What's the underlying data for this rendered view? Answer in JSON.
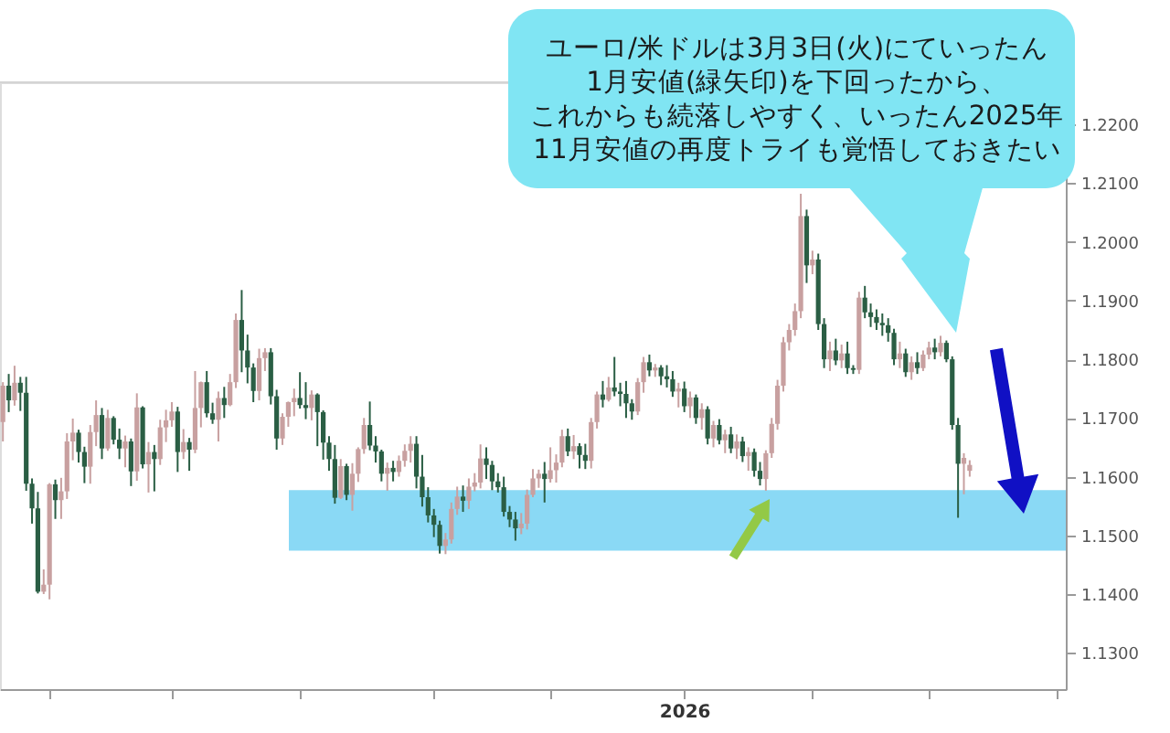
{
  "chart_data": {
    "type": "candlestick",
    "categories": [
      null,
      null,
      null,
      null,
      null,
      null,
      null,
      null,
      null,
      null,
      null,
      null,
      null,
      null,
      null,
      null,
      null,
      null,
      null,
      null,
      null,
      null,
      null,
      null,
      null,
      null,
      null,
      null,
      null,
      null,
      null,
      null,
      null,
      null,
      null,
      null,
      null,
      null,
      null,
      null,
      null,
      null,
      null,
      null,
      null,
      null,
      null,
      null,
      null,
      null,
      null,
      null,
      null,
      null,
      null,
      null,
      null,
      null,
      null,
      null,
      null,
      null,
      null,
      null,
      null,
      null,
      null,
      null,
      null,
      null,
      null,
      null,
      null,
      null,
      null,
      null,
      null,
      null,
      null,
      null,
      null,
      null,
      null,
      null,
      null,
      null,
      null,
      null,
      null,
      null,
      null,
      null,
      null,
      null,
      null,
      null,
      null,
      null,
      null,
      null,
      null,
      null,
      null,
      null,
      null,
      null,
      null,
      null,
      null,
      null,
      null,
      null,
      null,
      null,
      null,
      null,
      null,
      "2026",
      null,
      null,
      null,
      null,
      null,
      null,
      null,
      null,
      null,
      null,
      null,
      null,
      null,
      null,
      null,
      null,
      null,
      null,
      null,
      null,
      null,
      null,
      null,
      null,
      null,
      null,
      null,
      null,
      null,
      null,
      null,
      null,
      null,
      null,
      null,
      null,
      null,
      null,
      null,
      null,
      null,
      null,
      null,
      null,
      null,
      null,
      null,
      null,
      null,
      null,
      null,
      null,
      null,
      null,
      null,
      null,
      null,
      null,
      null,
      null,
      null,
      null,
      null,
      null,
      null
    ],
    "ohlc": [
      [
        1.1693,
        1.1761,
        1.166,
        1.1755
      ],
      [
        1.1755,
        1.1775,
        1.171,
        1.173
      ],
      [
        1.173,
        1.1789,
        1.1721,
        1.176
      ],
      [
        1.176,
        1.177,
        1.1712,
        1.1743
      ],
      [
        1.1743,
        1.177,
        1.1576,
        1.1588
      ],
      [
        1.1588,
        1.1597,
        1.152,
        1.1546
      ],
      [
        1.1546,
        1.1574,
        1.1401,
        1.1404
      ],
      [
        1.1404,
        1.1442,
        1.14,
        1.1416
      ],
      [
        1.1416,
        1.1589,
        1.1391,
        1.1587
      ],
      [
        1.1587,
        1.1595,
        1.1528,
        1.156
      ],
      [
        1.156,
        1.1598,
        1.1528,
        1.1575
      ],
      [
        1.1575,
        1.1674,
        1.1562,
        1.166
      ],
      [
        1.166,
        1.1699,
        1.1628,
        1.1675
      ],
      [
        1.1675,
        1.168,
        1.1624,
        1.1642
      ],
      [
        1.1642,
        1.1651,
        1.1589,
        1.1617
      ],
      [
        1.1617,
        1.1688,
        1.1588,
        1.1676
      ],
      [
        1.1676,
        1.173,
        1.1652,
        1.1705
      ],
      [
        1.1705,
        1.1717,
        1.163,
        1.1648
      ],
      [
        1.1648,
        1.1714,
        1.1644,
        1.17
      ],
      [
        1.17,
        1.1703,
        1.1655,
        1.1663
      ],
      [
        1.1663,
        1.1682,
        1.163,
        1.1648
      ],
      [
        1.1648,
        1.167,
        1.1616,
        1.166
      ],
      [
        1.166,
        1.1665,
        1.1584,
        1.1609
      ],
      [
        1.1609,
        1.1742,
        1.1593,
        1.1718
      ],
      [
        1.1718,
        1.172,
        1.1614,
        1.1621
      ],
      [
        1.1621,
        1.1659,
        1.1573,
        1.1642
      ],
      [
        1.1642,
        1.1654,
        1.1575,
        1.163
      ],
      [
        1.163,
        1.1697,
        1.162,
        1.1684
      ],
      [
        1.1684,
        1.1714,
        1.1659,
        1.1696
      ],
      [
        1.1696,
        1.1727,
        1.1685,
        1.1711
      ],
      [
        1.1711,
        1.1719,
        1.1608,
        1.1642
      ],
      [
        1.1642,
        1.1681,
        1.163,
        1.1659
      ],
      [
        1.1659,
        1.1666,
        1.161,
        1.1646
      ],
      [
        1.1646,
        1.178,
        1.164,
        1.1717
      ],
      [
        1.1717,
        1.1762,
        1.1684,
        1.1761
      ],
      [
        1.1761,
        1.178,
        1.1701,
        1.1708
      ],
      [
        1.1708,
        1.1726,
        1.169,
        1.1697
      ],
      [
        1.1697,
        1.1745,
        1.166,
        1.1734
      ],
      [
        1.1734,
        1.1753,
        1.17,
        1.1722
      ],
      [
        1.1722,
        1.1775,
        1.172,
        1.1761
      ],
      [
        1.1761,
        1.1878,
        1.1751,
        1.1867
      ],
      [
        1.1867,
        1.1918,
        1.1778,
        1.1815
      ],
      [
        1.1815,
        1.1842,
        1.1759,
        1.1786
      ],
      [
        1.1786,
        1.1793,
        1.1727,
        1.1746
      ],
      [
        1.1746,
        1.1818,
        1.173,
        1.1802
      ],
      [
        1.1802,
        1.1819,
        1.178,
        1.1812
      ],
      [
        1.1812,
        1.1819,
        1.1723,
        1.1737
      ],
      [
        1.1737,
        1.1748,
        1.1646,
        1.1665
      ],
      [
        1.1665,
        1.1708,
        1.1654,
        1.1702
      ],
      [
        1.1702,
        1.1728,
        1.1685,
        1.1727
      ],
      [
        1.1727,
        1.175,
        1.1703,
        1.1734
      ],
      [
        1.1734,
        1.1778,
        1.1716,
        1.1722
      ],
      [
        1.1722,
        1.1761,
        1.1698,
        1.1717
      ],
      [
        1.1717,
        1.1747,
        1.1696,
        1.174
      ],
      [
        1.174,
        1.1742,
        1.1652,
        1.171
      ],
      [
        1.171,
        1.1713,
        1.1629,
        1.1658
      ],
      [
        1.1658,
        1.1669,
        1.161,
        1.163
      ],
      [
        1.163,
        1.1654,
        1.1554,
        1.1564
      ],
      [
        1.1564,
        1.163,
        1.1562,
        1.1618
      ],
      [
        1.1618,
        1.1622,
        1.156,
        1.1569
      ],
      [
        1.1569,
        1.1623,
        1.1542,
        1.1605
      ],
      [
        1.1605,
        1.165,
        1.1591,
        1.1647
      ],
      [
        1.1647,
        1.17,
        1.1639,
        1.1688
      ],
      [
        1.1688,
        1.1728,
        1.1645,
        1.1653
      ],
      [
        1.1653,
        1.1669,
        1.1624,
        1.1643
      ],
      [
        1.1643,
        1.1646,
        1.1592,
        1.1605
      ],
      [
        1.1605,
        1.1624,
        1.1576,
        1.1615
      ],
      [
        1.1615,
        1.1627,
        1.1592,
        1.1608
      ],
      [
        1.1608,
        1.1636,
        1.16,
        1.1627
      ],
      [
        1.1627,
        1.1655,
        1.1617,
        1.1644
      ],
      [
        1.1644,
        1.1669,
        1.1624,
        1.1656
      ],
      [
        1.1656,
        1.1669,
        1.158,
        1.16
      ],
      [
        1.16,
        1.1637,
        1.1549,
        1.1565
      ],
      [
        1.1565,
        1.1582,
        1.1522,
        1.1534
      ],
      [
        1.1534,
        1.1545,
        1.1497,
        1.1518
      ],
      [
        1.1518,
        1.1525,
        1.1469,
        1.1482
      ],
      [
        1.1482,
        1.1504,
        1.1468,
        1.1493
      ],
      [
        1.1493,
        1.1556,
        1.1486,
        1.1545
      ],
      [
        1.1545,
        1.1583,
        1.1535,
        1.1566
      ],
      [
        1.1566,
        1.1585,
        1.154,
        1.1559
      ],
      [
        1.1559,
        1.1597,
        1.1545,
        1.1583
      ],
      [
        1.1583,
        1.1606,
        1.1575,
        1.159
      ],
      [
        1.159,
        1.1655,
        1.158,
        1.1631
      ],
      [
        1.1631,
        1.165,
        1.1596,
        1.162
      ],
      [
        1.162,
        1.1627,
        1.1577,
        1.1592
      ],
      [
        1.1592,
        1.1606,
        1.1573,
        1.1582
      ],
      [
        1.1582,
        1.16,
        1.1532,
        1.154
      ],
      [
        1.154,
        1.155,
        1.1514,
        1.1527
      ],
      [
        1.1527,
        1.154,
        1.1491,
        1.1512
      ],
      [
        1.1512,
        1.1538,
        1.1502,
        1.152
      ],
      [
        1.152,
        1.1578,
        1.151,
        1.1569
      ],
      [
        1.1569,
        1.1613,
        1.1565,
        1.1597
      ],
      [
        1.1597,
        1.1612,
        1.1581,
        1.1605
      ],
      [
        1.1605,
        1.1625,
        1.1556,
        1.1596
      ],
      [
        1.1596,
        1.165,
        1.159,
        1.1611
      ],
      [
        1.1611,
        1.1638,
        1.159,
        1.1624
      ],
      [
        1.1624,
        1.168,
        1.1616,
        1.1669
      ],
      [
        1.1669,
        1.1682,
        1.1635,
        1.1643
      ],
      [
        1.1643,
        1.1671,
        1.163,
        1.1652
      ],
      [
        1.1652,
        1.1657,
        1.1614,
        1.1637
      ],
      [
        1.1637,
        1.1656,
        1.1613,
        1.1627
      ],
      [
        1.1627,
        1.17,
        1.1614,
        1.1693
      ],
      [
        1.1693,
        1.1745,
        1.1682,
        1.174
      ],
      [
        1.174,
        1.1763,
        1.1718,
        1.1731
      ],
      [
        1.1731,
        1.177,
        1.1728,
        1.1752
      ],
      [
        1.1752,
        1.1804,
        1.1737,
        1.1745
      ],
      [
        1.1745,
        1.176,
        1.172,
        1.1741
      ],
      [
        1.1741,
        1.1763,
        1.17,
        1.1725
      ],
      [
        1.1725,
        1.1732,
        1.1697,
        1.1711
      ],
      [
        1.1711,
        1.1768,
        1.1705,
        1.1761
      ],
      [
        1.1761,
        1.1804,
        1.1743,
        1.1795
      ],
      [
        1.1795,
        1.1808,
        1.1771,
        1.1781
      ],
      [
        1.1781,
        1.1792,
        1.177,
        1.1786
      ],
      [
        1.1786,
        1.179,
        1.1756,
        1.1771
      ],
      [
        1.1771,
        1.179,
        1.1752,
        1.1766
      ],
      [
        1.1766,
        1.178,
        1.1736,
        1.1745
      ],
      [
        1.1745,
        1.176,
        1.1718,
        1.175
      ],
      [
        1.175,
        1.1762,
        1.171,
        1.172
      ],
      [
        1.172,
        1.1745,
        1.17,
        1.1735
      ],
      [
        1.1735,
        1.174,
        1.169,
        1.17
      ],
      [
        1.17,
        1.1725,
        1.168,
        1.1715
      ],
      [
        1.1715,
        1.172,
        1.1655,
        1.1665
      ],
      [
        1.1665,
        1.1695,
        1.165,
        1.1688
      ],
      [
        1.1688,
        1.1698,
        1.1655,
        1.1662
      ],
      [
        1.1662,
        1.168,
        1.164,
        1.1672
      ],
      [
        1.1672,
        1.1685,
        1.164,
        1.1648
      ],
      [
        1.1648,
        1.1672,
        1.163,
        1.166
      ],
      [
        1.166,
        1.1668,
        1.1625,
        1.1635
      ],
      [
        1.1635,
        1.165,
        1.161,
        1.1642
      ],
      [
        1.1642,
        1.1648,
        1.16,
        1.161
      ],
      [
        1.161,
        1.1625,
        1.1585,
        1.1596
      ],
      [
        1.1596,
        1.1645,
        1.1576,
        1.164
      ],
      [
        1.164,
        1.17,
        1.1632,
        1.169
      ],
      [
        1.169,
        1.1765,
        1.168,
        1.1755
      ],
      [
        1.1755,
        1.1838,
        1.1745,
        1.1829
      ],
      [
        1.1829,
        1.186,
        1.1815,
        1.185
      ],
      [
        1.185,
        1.1895,
        1.184,
        1.1882
      ],
      [
        1.1882,
        1.2082,
        1.187,
        1.2044
      ],
      [
        1.2044,
        1.2055,
        1.193,
        1.196
      ],
      [
        1.196,
        1.1985,
        1.1945,
        1.197
      ],
      [
        1.197,
        1.198,
        1.185,
        1.186
      ],
      [
        1.186,
        1.187,
        1.1785,
        1.18
      ],
      [
        1.18,
        1.183,
        1.178,
        1.1815
      ],
      [
        1.1815,
        1.1835,
        1.179,
        1.1798
      ],
      [
        1.1798,
        1.1825,
        1.1785,
        1.181
      ],
      [
        1.181,
        1.183,
        1.1775,
        1.1785
      ],
      [
        1.1785,
        1.179,
        1.1775,
        1.1782
      ],
      [
        1.1782,
        1.1915,
        1.1775,
        1.1905
      ],
      [
        1.1905,
        1.1925,
        1.187,
        1.188
      ],
      [
        1.188,
        1.1895,
        1.1855,
        1.1872
      ],
      [
        1.1872,
        1.1885,
        1.185,
        1.1862
      ],
      [
        1.1862,
        1.1878,
        1.184,
        1.1858
      ],
      [
        1.1858,
        1.187,
        1.183,
        1.1845
      ],
      [
        1.1845,
        1.1852,
        1.179,
        1.18
      ],
      [
        1.18,
        1.183,
        1.1785,
        1.181
      ],
      [
        1.181,
        1.1818,
        1.177,
        1.1778
      ],
      [
        1.1778,
        1.1805,
        1.1765,
        1.1795
      ],
      [
        1.1795,
        1.1812,
        1.1775,
        1.1785
      ],
      [
        1.1785,
        1.1815,
        1.178,
        1.1808
      ],
      [
        1.1808,
        1.183,
        1.18,
        1.182
      ],
      [
        1.182,
        1.1835,
        1.18,
        1.1812
      ],
      [
        1.1812,
        1.184,
        1.1805,
        1.1828
      ],
      [
        1.1828,
        1.1832,
        1.1795,
        1.18
      ],
      [
        1.18,
        1.1805,
        1.168,
        1.1688
      ],
      [
        1.1688,
        1.17,
        1.153,
        1.1622
      ],
      [
        1.1622,
        1.164,
        1.157,
        1.1632
      ],
      [
        1.161,
        1.1628,
        1.16,
        1.162
      ],
      null,
      null,
      null,
      null,
      null,
      null,
      null,
      null,
      null,
      null,
      null,
      null,
      null,
      null,
      null,
      null
    ],
    "colors": [
      "#c8a0a0",
      "#2a5e44",
      "#c8a0a0",
      "#2a5e44",
      "#2a5e44",
      "#2a5e44",
      "#2a5e44",
      "#c8a0a0",
      "#c8a0a0",
      "#2a5e44",
      "#c8a0a0",
      "#c8a0a0",
      "#c8a0a0",
      "#2a5e44",
      "#2a5e44",
      "#c8a0a0",
      "#c8a0a0",
      "#2a5e44",
      "#c8a0a0",
      "#2a5e44",
      "#2a5e44",
      "#c8a0a0",
      "#2a5e44",
      "#c8a0a0",
      "#2a5e44",
      "#c8a0a0",
      "#2a5e44",
      "#c8a0a0",
      "#c8a0a0",
      "#c8a0a0",
      "#2a5e44",
      "#c8a0a0",
      "#2a5e44",
      "#c8a0a0",
      "#c8a0a0",
      "#2a5e44",
      "#2a5e44",
      "#c8a0a0",
      "#2a5e44",
      "#c8a0a0",
      "#c8a0a0",
      "#2a5e44",
      "#2a5e44",
      "#2a5e44",
      "#c8a0a0",
      "#c8a0a0",
      "#2a5e44",
      "#2a5e44",
      "#c8a0a0",
      "#c8a0a0",
      "#c8a0a0",
      "#2a5e44",
      "#2a5e44",
      "#c8a0a0",
      "#2a5e44",
      "#2a5e44",
      "#2a5e44",
      "#2a5e44",
      "#c8a0a0",
      "#2a5e44",
      "#c8a0a0",
      "#c8a0a0",
      "#c8a0a0",
      "#2a5e44",
      "#2a5e44",
      "#2a5e44",
      "#c8a0a0",
      "#2a5e44",
      "#c8a0a0",
      "#c8a0a0",
      "#c8a0a0",
      "#2a5e44",
      "#2a5e44",
      "#2a5e44",
      "#2a5e44",
      "#2a5e44",
      "#c8a0a0",
      "#c8a0a0",
      "#c8a0a0",
      "#2a5e44",
      "#c8a0a0",
      "#c8a0a0",
      "#c8a0a0",
      "#2a5e44",
      "#2a5e44",
      "#2a5e44",
      "#2a5e44",
      "#2a5e44",
      "#2a5e44",
      "#c8a0a0",
      "#c8a0a0",
      "#c8a0a0",
      "#c8a0a0",
      "#2a5e44",
      "#c8a0a0",
      "#c8a0a0",
      "#c8a0a0",
      "#2a5e44",
      "#c8a0a0",
      "#2a5e44",
      "#2a5e44",
      "#c8a0a0",
      "#c8a0a0",
      "#2a5e44",
      "#c8a0a0",
      "#2a5e44",
      "#2a5e44",
      "#2a5e44",
      "#2a5e44",
      "#c8a0a0",
      "#c8a0a0",
      "#2a5e44",
      "#c8a0a0",
      "#2a5e44",
      "#2a5e44",
      "#2a5e44",
      "#c8a0a0",
      "#2a5e44",
      "#c8a0a0",
      "#2a5e44",
      "#c8a0a0",
      "#2a5e44",
      "#c8a0a0",
      "#2a5e44",
      "#c8a0a0",
      "#2a5e44",
      "#c8a0a0",
      "#2a5e44",
      "#c8a0a0",
      "#2a5e44",
      "#2a5e44",
      "#c8a0a0",
      "#c8a0a0",
      "#c8a0a0",
      "#c8a0a0",
      "#c8a0a0",
      "#c8a0a0",
      "#c8a0a0",
      "#2a5e44",
      "#c8a0a0",
      "#2a5e44",
      "#2a5e44",
      "#c8a0a0",
      "#2a5e44",
      "#c8a0a0",
      "#2a5e44",
      "#2a5e44",
      "#c8a0a0",
      "#2a5e44",
      "#2a5e44",
      "#2a5e44",
      "#2a5e44",
      "#2a5e44",
      "#2a5e44",
      "#c8a0a0",
      "#2a5e44",
      "#c8a0a0",
      "#2a5e44",
      "#c8a0a0",
      "#c8a0a0",
      "#2a5e44",
      "#c8a0a0",
      "#2a5e44",
      "#2a5e44",
      "#2a5e44",
      "#c8a0a0",
      "#c8a0a0",
      null,
      null,
      null,
      null,
      null,
      null,
      null,
      null,
      null,
      null,
      null,
      null,
      null,
      null,
      null,
      null
    ],
    "ylim": [
      1.1238,
      1.2272
    ],
    "yticks": [
      {
        "value": 1.13,
        "label": "1.1300"
      },
      {
        "value": 1.14,
        "label": "1.1400"
      },
      {
        "value": 1.15,
        "label": "1.1500"
      },
      {
        "value": 1.16,
        "label": "1.1600"
      },
      {
        "value": 1.17,
        "label": "1.1700"
      },
      {
        "value": 1.18,
        "label": "1.1800"
      },
      {
        "value": 1.19,
        "label": "1.1900"
      },
      {
        "value": 1.2,
        "label": "1.2000"
      },
      {
        "value": 1.21,
        "label": "1.2100"
      },
      {
        "value": 1.22,
        "label": "1.2200"
      }
    ],
    "bands": [
      {
        "axis": "y",
        "from": 1.1474,
        "to": 1.1577,
        "color": "#8ad9f5"
      }
    ],
    "annotations": [
      "ユーロ/米ドルは3月3日(火)にていったん",
      "1月安値(緑矢印)を下回ったから、",
      "これからも続落しやすく、いったん2025年",
      "11月安値の再度トライも覚悟しておきたい"
    ]
  }
}
